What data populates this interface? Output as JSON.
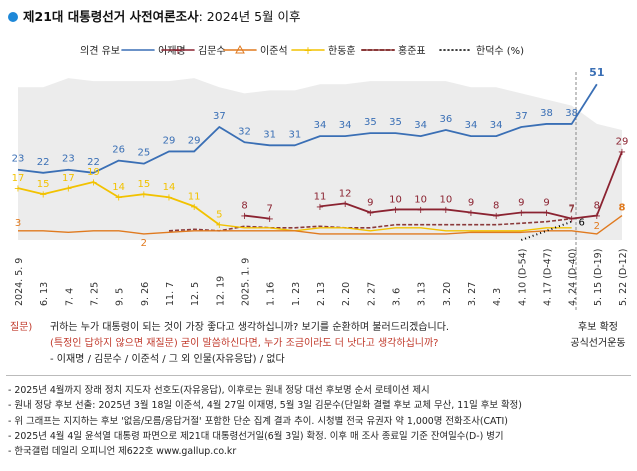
{
  "title": {
    "bold": "제21대 대통령선거 사전여론조사",
    "rest": ": 2024년 5월 이후"
  },
  "chart_data": {
    "type": "line",
    "categories": [
      "2024. 5. 9",
      "6. 13",
      "7. 4",
      "7. 25",
      "9. 5",
      "9. 26",
      "11. 7",
      "12. 5",
      "12. 19",
      "2025. 1. 9",
      "1. 16",
      "1. 23",
      "2. 13",
      "2. 20",
      "2. 27",
      "3. 6",
      "3. 13",
      "3. 20",
      "3. 27",
      "4. 3",
      "4. 10 (D-54)",
      "4. 17 (D-47)",
      "4. 24 (D-40)",
      "5. 15 (D-19)",
      "5. 22 (D-12)"
    ],
    "legend": [
      "의견 유보",
      "이재명",
      "김문수",
      "이준석",
      "한동훈",
      "홍준표",
      "한덕수 (%)"
    ],
    "series": [
      {
        "name": "이재명",
        "color": "#3a6fb5",
        "values": [
          23,
          22,
          23,
          22,
          26,
          25,
          29,
          29,
          37,
          32,
          31,
          31,
          34,
          34,
          35,
          35,
          34,
          36,
          34,
          34,
          37,
          38,
          38,
          51,
          null
        ]
      },
      {
        "name": "김문수",
        "color": "#8b2331",
        "values": [
          null,
          null,
          null,
          null,
          null,
          null,
          null,
          null,
          null,
          8,
          7,
          null,
          11,
          12,
          9,
          10,
          10,
          10,
          9,
          8,
          9,
          9,
          7,
          8,
          29
        ]
      },
      {
        "name": "이준석",
        "color": "#e07a1f",
        "values": [
          3,
          null,
          null,
          null,
          null,
          2,
          null,
          null,
          null,
          null,
          null,
          null,
          null,
          null,
          null,
          null,
          null,
          null,
          null,
          null,
          null,
          null,
          null,
          2,
          8
        ]
      },
      {
        "name": "한동훈",
        "color": "#f2c200",
        "values": [
          17,
          15,
          17,
          19,
          14,
          15,
          14,
          11,
          5,
          null,
          null,
          null,
          null,
          null,
          null,
          null,
          null,
          null,
          null,
          null,
          null,
          null,
          null,
          null,
          null
        ]
      },
      {
        "name": "홍준표",
        "color": "#8b3a3a",
        "values": [
          null,
          null,
          null,
          null,
          null,
          null,
          null,
          null,
          null,
          null,
          null,
          null,
          null,
          null,
          null,
          null,
          null,
          null,
          null,
          null,
          null,
          null,
          7,
          null,
          null
        ]
      },
      {
        "name": "한덕수",
        "color": "#000000",
        "values": [
          null,
          null,
          null,
          null,
          null,
          null,
          null,
          null,
          null,
          null,
          null,
          null,
          null,
          null,
          null,
          null,
          null,
          null,
          null,
          null,
          null,
          null,
          6,
          null,
          null
        ]
      }
    ],
    "end_labels": {
      "한덕수": "6",
      "이준석_end": "2"
    },
    "phase_label": {
      "line1": "후보 확정",
      "line2": "공식선거운동"
    },
    "ylim": [
      0,
      55
    ]
  },
  "question": {
    "label": "질문)",
    "line1": "귀하는 누가 대통령이 되는 것이 가장 좋다고 생각하십니까? 보기를 순환하며 불러드리겠습니다.",
    "line2": "(특정인 답하지 않으면 재질문) 굳이 말씀하신다면, 누가 조금이라도 더 낫다고 생각하십니까?",
    "line3": "- 이재명 / 김문수 / 이준석 / 그 외 인물(자유응답) / 없다"
  },
  "notes": [
    "- 2025년 4월까지 장래 정치 지도자 선호도(자유응답), 이후로는 원내 정당 대선 후보명 순서 로테이션 제시",
    "- 원내 정당 후보 선출: 2025년 3월 18일 이준석, 4월 27일 이재명, 5월 3일 김문수(단일화 결렬 후보 교체 무산, 11일 후보 확정)",
    "- 위 그래프는 지지하는 후보 '없음/모름/응답거절' 포함한 단순 집계 결과 추이. 시청별 전국 유권자 약 1,000명 전화조사(CATI)",
    "- 2025년 4월 4일 윤석열 대통령 파면으로 제21대 대통령선거일(6월 3일) 확정. 이후 매 조사 종료일 기준 잔여일수(D-) 병기",
    "- 한국갤럽 데일리 오피니언 제622호 www.gallup.co.kr"
  ]
}
